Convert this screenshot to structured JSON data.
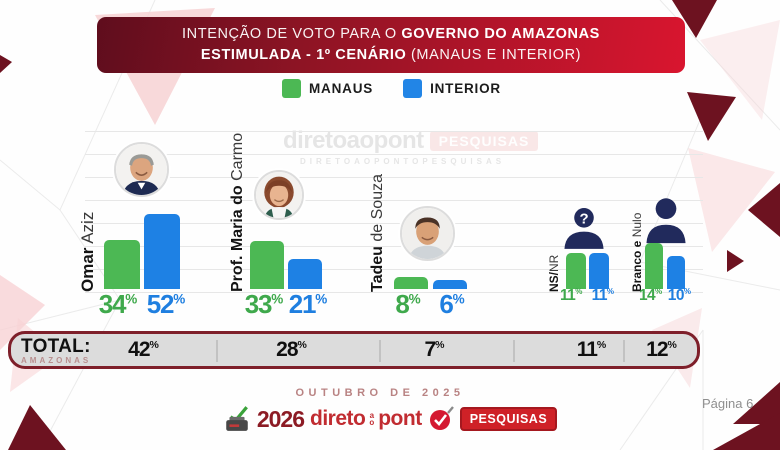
{
  "percent_sign": "%",
  "banner": {
    "l1a": "INTENÇÃO DE VOTO PARA O ",
    "l1b": "GOVERNO DO AMAZONAS",
    "l2a": "ESTIMULADA - 1º CENÁRIO",
    "l2b": " (MANAUS E INTERIOR)"
  },
  "legend": {
    "manaus": "MANAUS",
    "interior": "INTERIOR"
  },
  "colors": {
    "manaus_green": "#4cb854",
    "interior_blue": "#1e81e4",
    "banner_red_dark": "#5f0d1d",
    "banner_red_bright": "#d9152f",
    "icon_navy": "#212a5c",
    "total_border_red": "#7e1f2a"
  },
  "chart_data": {
    "type": "bar",
    "title": "INTENÇÃO DE VOTO PARA O GOVERNO DO AMAZONAS ESTIMULADA - 1º CENÁRIO (MANAUS E INTERIOR)",
    "categories": [
      "Omar Aziz",
      "Prof. Maria do Carmo",
      "Tadeu de Souza",
      "NS/NR",
      "Branco e Nulo"
    ],
    "series": [
      {
        "name": "MANAUS",
        "color": "#4cb854",
        "values": [
          34,
          33,
          8,
          11,
          14
        ]
      },
      {
        "name": "INTERIOR",
        "color": "#1e81e4",
        "values": [
          52,
          21,
          6,
          11,
          10
        ]
      }
    ],
    "totals_row": {
      "label": "TOTAL: AMAZONAS",
      "values": [
        42,
        28,
        7,
        11,
        12
      ]
    },
    "unit": "%",
    "ylim": [
      0,
      60
    ],
    "grid": true,
    "legend_position": "top"
  },
  "groups": [
    {
      "bold": "Omar",
      "rest": " Aziz",
      "manaus": 34,
      "interior": 52
    },
    {
      "bold": "Prof. Maria do",
      "rest": " Carmo",
      "manaus": 33,
      "interior": 21
    },
    {
      "bold": "Tadeu",
      "rest": " de Souza",
      "manaus": 8,
      "interior": 6
    },
    {
      "bold": "NS/",
      "rest": "NR",
      "manaus": 11,
      "interior": 11
    },
    {
      "bold": "Branco e",
      "rest": " Nulo",
      "manaus": 14,
      "interior": 10
    }
  ],
  "total": {
    "label": "TOTAL:",
    "region": "AMAZONAS",
    "values": [
      42,
      28,
      7,
      11,
      12
    ]
  },
  "watermark": {
    "brand": "diretoaopont",
    "badge": "PESQUISAS",
    "url": "DIRETOAOPONTOPESQUISAS"
  },
  "footer": {
    "date": "OUTUBRO DE 2025",
    "page": "Página 6",
    "logo_year": "2026",
    "logo_brand1": "direto",
    "logo_ao_a": "a",
    "logo_ao_o": "o",
    "logo_brand2": "pont",
    "logo_badge": "PESQUISAS"
  }
}
